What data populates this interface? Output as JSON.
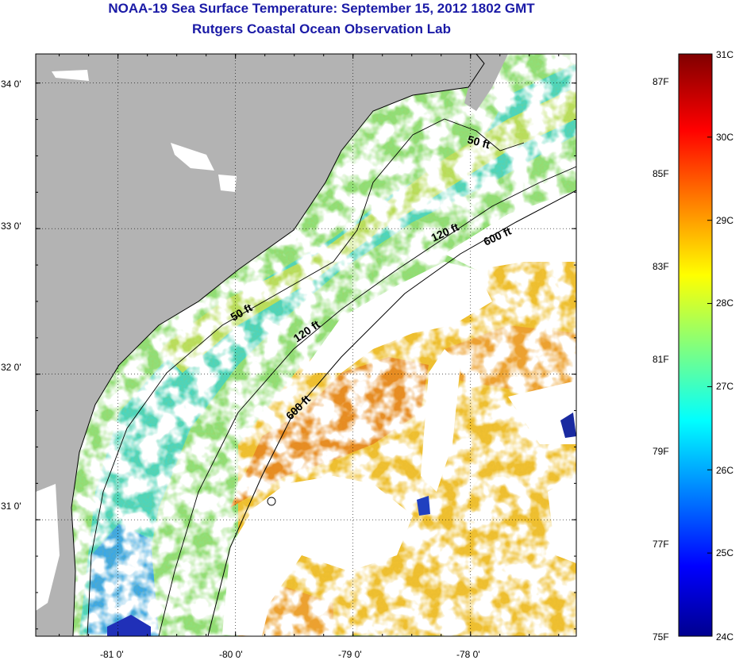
{
  "header": {
    "title": "NOAA-19 Sea Surface Temperature:  September 15, 2012 1802 GMT",
    "subtitle": "Rutgers Coastal Ocean Observation Lab"
  },
  "map": {
    "lon_range": [
      -81.7,
      -77.1
    ],
    "lat_range": [
      30.2,
      34.2
    ],
    "lon_ticks": [
      {
        "value": -81,
        "label": "-81 0'"
      },
      {
        "value": -80,
        "label": "-80 0'"
      },
      {
        "value": -79,
        "label": "-79 0'"
      },
      {
        "value": -78,
        "label": "-78 0'"
      }
    ],
    "lat_ticks": [
      {
        "value": 34,
        "label": "34 0'"
      },
      {
        "value": 33,
        "label": "33 0'"
      },
      {
        "value": 32,
        "label": "32 0'"
      },
      {
        "value": 31,
        "label": "31 0'"
      }
    ],
    "contour_labels": [
      "50 ft",
      "120 ft",
      "600 ft",
      "50 ft",
      "120 ft",
      "600 ft"
    ],
    "colors": {
      "land": "#b3b3b3",
      "cloud": "#ffffff"
    }
  },
  "colorbar": {
    "celsius_labels": [
      "31C",
      "30C",
      "29C",
      "28C",
      "27C",
      "26C",
      "25C",
      "24C"
    ],
    "fahrenheit_labels": [
      "87F",
      "85F",
      "83F",
      "81F",
      "79F",
      "77F",
      "75F"
    ],
    "range_c": [
      24,
      31
    ]
  }
}
